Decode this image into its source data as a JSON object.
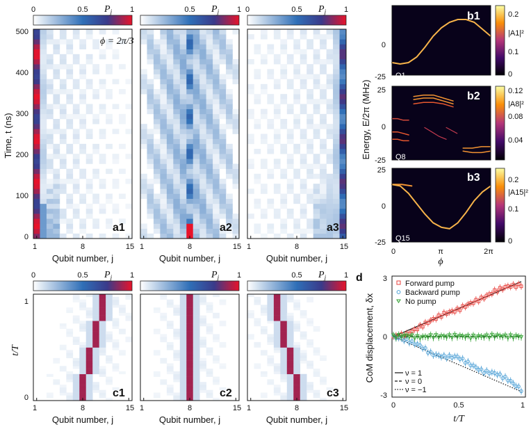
{
  "colors": {
    "p_low": "#ffffff",
    "p_mid": "#2f6fb7",
    "p_high": "#e8132a",
    "forward": "#e8413c",
    "backward": "#4b9fd5",
    "nopump": "#2ea02e",
    "inferno_dark": "#000004",
    "inferno_bright": "#fcffa4"
  },
  "colorbars": {
    "p_label": "P_j",
    "p_ticks": [
      "0",
      "0.5",
      "1"
    ]
  },
  "chart_data": [
    {
      "id": "a1",
      "type": "heatmap",
      "panel_label": "a1",
      "xlabel": "Qubit number, j",
      "ylabel": "Time, t (ns)",
      "xticks": [
        "1",
        "8",
        "15"
      ],
      "yticks": [
        "0",
        "100",
        "200",
        "300",
        "400",
        "500"
      ],
      "annotation": "ϕ = 2π/3",
      "xlim": [
        1,
        15
      ],
      "ylim": [
        0,
        500
      ],
      "description_values": {
        "dominant_qubit": 1,
        "max_P": 1.0
      }
    },
    {
      "id": "a2",
      "type": "heatmap",
      "panel_label": "a2",
      "xlabel": "Qubit number, j",
      "xticks": [
        "1",
        "8",
        "15"
      ],
      "xlim": [
        1,
        15
      ],
      "ylim": [
        0,
        500
      ],
      "description_values": {
        "dominant_qubit": 8,
        "max_P": 1.0
      }
    },
    {
      "id": "a3",
      "type": "heatmap",
      "panel_label": "a3",
      "xlabel": "Qubit number, j",
      "xticks": [
        "1",
        "8",
        "15"
      ],
      "xlim": [
        1,
        15
      ],
      "ylim": [
        0,
        500
      ],
      "description_values": {
        "dominant_qubit": 15,
        "max_P": 1.0
      }
    },
    {
      "id": "b1",
      "type": "heatmap",
      "panel_label": "b1",
      "inset": "Q1",
      "colorbar_label": "|A1|²",
      "colorbar_ticks": [
        "0.2",
        "0.1",
        "0"
      ],
      "yticks": [
        "0",
        "-25"
      ],
      "ylim": [
        -25,
        25
      ],
      "xlim": [
        0,
        6.283
      ],
      "curve_E": [
        -16,
        -17,
        -16,
        -12,
        -5,
        3,
        9,
        13,
        15,
        15,
        13,
        8,
        3
      ]
    },
    {
      "id": "b2",
      "type": "heatmap",
      "panel_label": "b2",
      "inset": "Q8",
      "colorbar_label": "|A8|²",
      "colorbar_ticks": [
        "0.12",
        "0.08",
        "0.04"
      ],
      "yticks": [
        "25",
        "0",
        "-25"
      ],
      "ylim": [
        -25,
        25
      ],
      "xlim": [
        0,
        6.283
      ],
      "ylabel": "Energy, E/2π (MHz)"
    },
    {
      "id": "b3",
      "type": "heatmap",
      "panel_label": "b3",
      "inset": "Q15",
      "colorbar_label": "|A15|²",
      "colorbar_ticks": [
        "0.2",
        "0.1",
        "0"
      ],
      "yticks": [
        "25",
        "0",
        "-25"
      ],
      "ylim": [
        -25,
        25
      ],
      "xlim": [
        0,
        6.283
      ],
      "xticks": [
        "0",
        "π",
        "2π"
      ],
      "xlabel": "ϕ",
      "curve_E": [
        14,
        13,
        8,
        1,
        -6,
        -12,
        -15,
        -16,
        -12,
        -5,
        3,
        9,
        13
      ]
    },
    {
      "id": "c1",
      "type": "heatmap",
      "panel_label": "c1",
      "xlabel": "Qubit number, j",
      "ylabel": "t/T",
      "xticks": [
        "1",
        "8",
        "15"
      ],
      "yticks": [
        "0",
        "1"
      ],
      "xlim": [
        1,
        15
      ],
      "ylim": [
        0,
        1
      ],
      "path_qubit": [
        8,
        8,
        9,
        9,
        10,
        10,
        11,
        11
      ]
    },
    {
      "id": "c2",
      "type": "heatmap",
      "panel_label": "c2",
      "xlabel": "Qubit number, j",
      "xticks": [
        "1",
        "8",
        "15"
      ],
      "xlim": [
        1,
        15
      ],
      "ylim": [
        0,
        1
      ],
      "path_qubit": [
        8,
        8,
        8,
        8,
        8,
        8,
        8,
        8
      ]
    },
    {
      "id": "c3",
      "type": "heatmap",
      "panel_label": "c3",
      "xlabel": "Qubit number, j",
      "xticks": [
        "1",
        "8",
        "15"
      ],
      "xlim": [
        1,
        15
      ],
      "ylim": [
        0,
        1
      ],
      "path_qubit": [
        8,
        8,
        7,
        7,
        6,
        6,
        5,
        5
      ]
    },
    {
      "id": "d",
      "type": "scatter",
      "panel_label": "d",
      "xlabel": "t/T",
      "ylabel": "CoM displacement, δx",
      "xticks": [
        "0",
        "0.5",
        "1"
      ],
      "yticks": [
        "3",
        "0",
        "-3"
      ],
      "xlim": [
        0,
        1
      ],
      "ylim": [
        -3.3,
        3.3
      ],
      "series": [
        {
          "name": "Forward pump",
          "x": [
            0,
            0.1,
            0.2,
            0.3,
            0.4,
            0.5,
            0.6,
            0.7,
            0.8,
            0.9,
            1.0
          ],
          "y": [
            0,
            0.1,
            0.5,
            0.9,
            1.25,
            1.45,
            1.8,
            2.1,
            2.5,
            2.75,
            2.8
          ]
        },
        {
          "name": "Backward pump",
          "x": [
            0,
            0.1,
            0.2,
            0.3,
            0.4,
            0.5,
            0.6,
            0.7,
            0.8,
            0.9,
            1.0
          ],
          "y": [
            0,
            -0.2,
            -0.45,
            -0.95,
            -1.1,
            -1.1,
            -1.5,
            -1.9,
            -2.0,
            -2.35,
            -2.9
          ]
        },
        {
          "name": "No pump",
          "x": [
            0,
            0.1,
            0.2,
            0.3,
            0.4,
            0.5,
            0.6,
            0.7,
            0.8,
            0.9,
            1.0
          ],
          "y": [
            0,
            0.05,
            -0.05,
            0.02,
            0.0,
            0.03,
            -0.02,
            0.0,
            0.04,
            0.0,
            0.0
          ]
        }
      ],
      "reference_lines": [
        {
          "label": "ν = 1",
          "slope": 3,
          "style": "solid"
        },
        {
          "label": "ν = 0",
          "slope": 0,
          "style": "dashed"
        },
        {
          "label": "ν = −1",
          "slope": -3,
          "style": "dotted"
        }
      ]
    }
  ]
}
